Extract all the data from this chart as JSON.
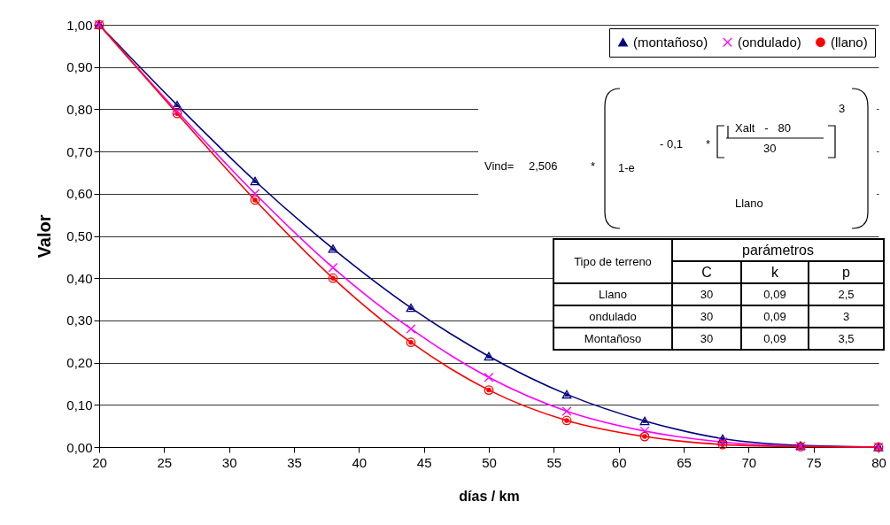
{
  "chart_data": {
    "type": "line",
    "xlabel": "días / km",
    "ylabel": "Valor",
    "x": [
      20,
      26,
      32,
      38,
      44,
      50,
      56,
      62,
      68,
      74,
      80
    ],
    "series": [
      {
        "name": "(montañoso)",
        "color": "#000080",
        "marker": "triangle",
        "values": [
          1.0,
          0.81,
          0.63,
          0.47,
          0.33,
          0.215,
          0.125,
          0.062,
          0.02,
          0.004,
          0.0
        ]
      },
      {
        "name": "(ondulado)",
        "color": "#ff00ff",
        "marker": "cross",
        "values": [
          1.0,
          0.795,
          0.6,
          0.425,
          0.28,
          0.165,
          0.085,
          0.038,
          0.012,
          0.002,
          0.0
        ]
      },
      {
        "name": "(llano)",
        "color": "#ff0000",
        "marker": "circle",
        "values": [
          1.0,
          0.79,
          0.585,
          0.4,
          0.248,
          0.135,
          0.063,
          0.025,
          0.006,
          0.001,
          0.0
        ]
      }
    ],
    "xlim": [
      20,
      80
    ],
    "xticks": [
      20,
      25,
      30,
      35,
      40,
      45,
      50,
      55,
      60,
      65,
      70,
      75,
      80
    ],
    "ylim": [
      0,
      1
    ],
    "yticks": [
      {
        "value": 0,
        "label": "0,00"
      },
      {
        "value": 0.1,
        "label": "0,10"
      },
      {
        "value": 0.2,
        "label": "0,20"
      },
      {
        "value": 0.3,
        "label": "0,30"
      },
      {
        "value": 0.4,
        "label": "0,40"
      },
      {
        "value": 0.5,
        "label": "0,50"
      },
      {
        "value": 0.6,
        "label": "0,60"
      },
      {
        "value": 0.7,
        "label": "0,70"
      },
      {
        "value": 0.8,
        "label": "0,80"
      },
      {
        "value": 0.9,
        "label": "0,90"
      },
      {
        "value": 1,
        "label": "1,00"
      }
    ],
    "grid": "y",
    "legend": "top right",
    "line_style": "solid",
    "annotations": [
      "Vind=",
      "2,506",
      "*",
      "1-e",
      "- 0,1",
      "*",
      "Xalt   -   80",
      "30",
      "3",
      "Llano",
      "Tipo de terreno",
      "parámetros",
      "C",
      "k",
      "p",
      "Llano",
      "30",
      "0,09",
      "2,5",
      "ondulado",
      "30",
      "0,09",
      "3",
      "Montañoso",
      "30",
      "0,09",
      "3,5"
    ]
  }
}
